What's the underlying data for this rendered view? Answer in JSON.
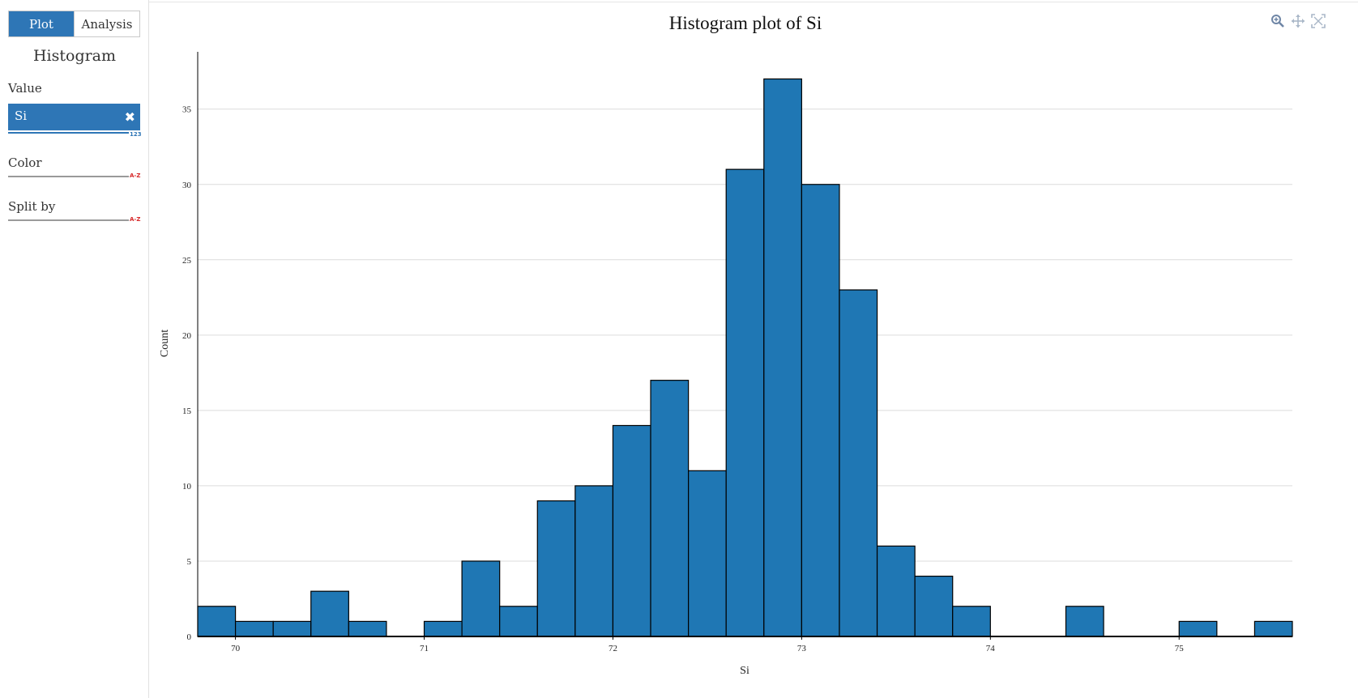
{
  "sidebar": {
    "tabs": [
      {
        "label": "Plot"
      },
      {
        "label": "Analysis"
      }
    ],
    "title": "Histogram",
    "value_label": "Value",
    "value_field": "Si",
    "value_type": "123",
    "color_label": "Color",
    "color_type": "A-Z",
    "split_label": "Split by",
    "split_type": "A-Z"
  },
  "toolbar": {
    "icons": [
      "zoom-icon",
      "pan-icon",
      "reset-icon"
    ]
  },
  "colors": {
    "bar": "#1f77b4",
    "accent": "#2e76b6",
    "numeric_tag": "#2e76b6",
    "text_tag": "#d62728"
  },
  "chart_data": {
    "type": "bar",
    "title": "Histogram plot of Si",
    "xlabel": "Si",
    "ylabel": "Count",
    "bin_width": 0.2,
    "bins": [
      {
        "x0": 69.8,
        "count": 2
      },
      {
        "x0": 70.0,
        "count": 1
      },
      {
        "x0": 70.2,
        "count": 1
      },
      {
        "x0": 70.4,
        "count": 3
      },
      {
        "x0": 70.6,
        "count": 1
      },
      {
        "x0": 70.8,
        "count": 0
      },
      {
        "x0": 71.0,
        "count": 1
      },
      {
        "x0": 71.2,
        "count": 5
      },
      {
        "x0": 71.4,
        "count": 2
      },
      {
        "x0": 71.6,
        "count": 9
      },
      {
        "x0": 71.8,
        "count": 10
      },
      {
        "x0": 72.0,
        "count": 14
      },
      {
        "x0": 72.2,
        "count": 17
      },
      {
        "x0": 72.4,
        "count": 11
      },
      {
        "x0": 72.6,
        "count": 31
      },
      {
        "x0": 72.8,
        "count": 37
      },
      {
        "x0": 73.0,
        "count": 30
      },
      {
        "x0": 73.2,
        "count": 23
      },
      {
        "x0": 73.4,
        "count": 6
      },
      {
        "x0": 73.6,
        "count": 4
      },
      {
        "x0": 73.8,
        "count": 2
      },
      {
        "x0": 74.0,
        "count": 0
      },
      {
        "x0": 74.2,
        "count": 0
      },
      {
        "x0": 74.4,
        "count": 2
      },
      {
        "x0": 74.6,
        "count": 0
      },
      {
        "x0": 74.8,
        "count": 0
      },
      {
        "x0": 75.0,
        "count": 1
      },
      {
        "x0": 75.2,
        "count": 0
      },
      {
        "x0": 75.4,
        "count": 1
      }
    ],
    "xlim": [
      69.8,
      75.6
    ],
    "ylim": [
      0,
      38.8
    ],
    "xticks": [
      70,
      71,
      72,
      73,
      74,
      75
    ],
    "xtick_labels": [
      "70",
      "71",
      "72",
      "73",
      "74",
      "75"
    ],
    "yticks": [
      0,
      5,
      10,
      15,
      20,
      25,
      30,
      35
    ],
    "ytick_labels": [
      "0",
      "5",
      "10",
      "15",
      "20",
      "25",
      "30",
      "35"
    ],
    "grid": true,
    "legend": "none"
  }
}
